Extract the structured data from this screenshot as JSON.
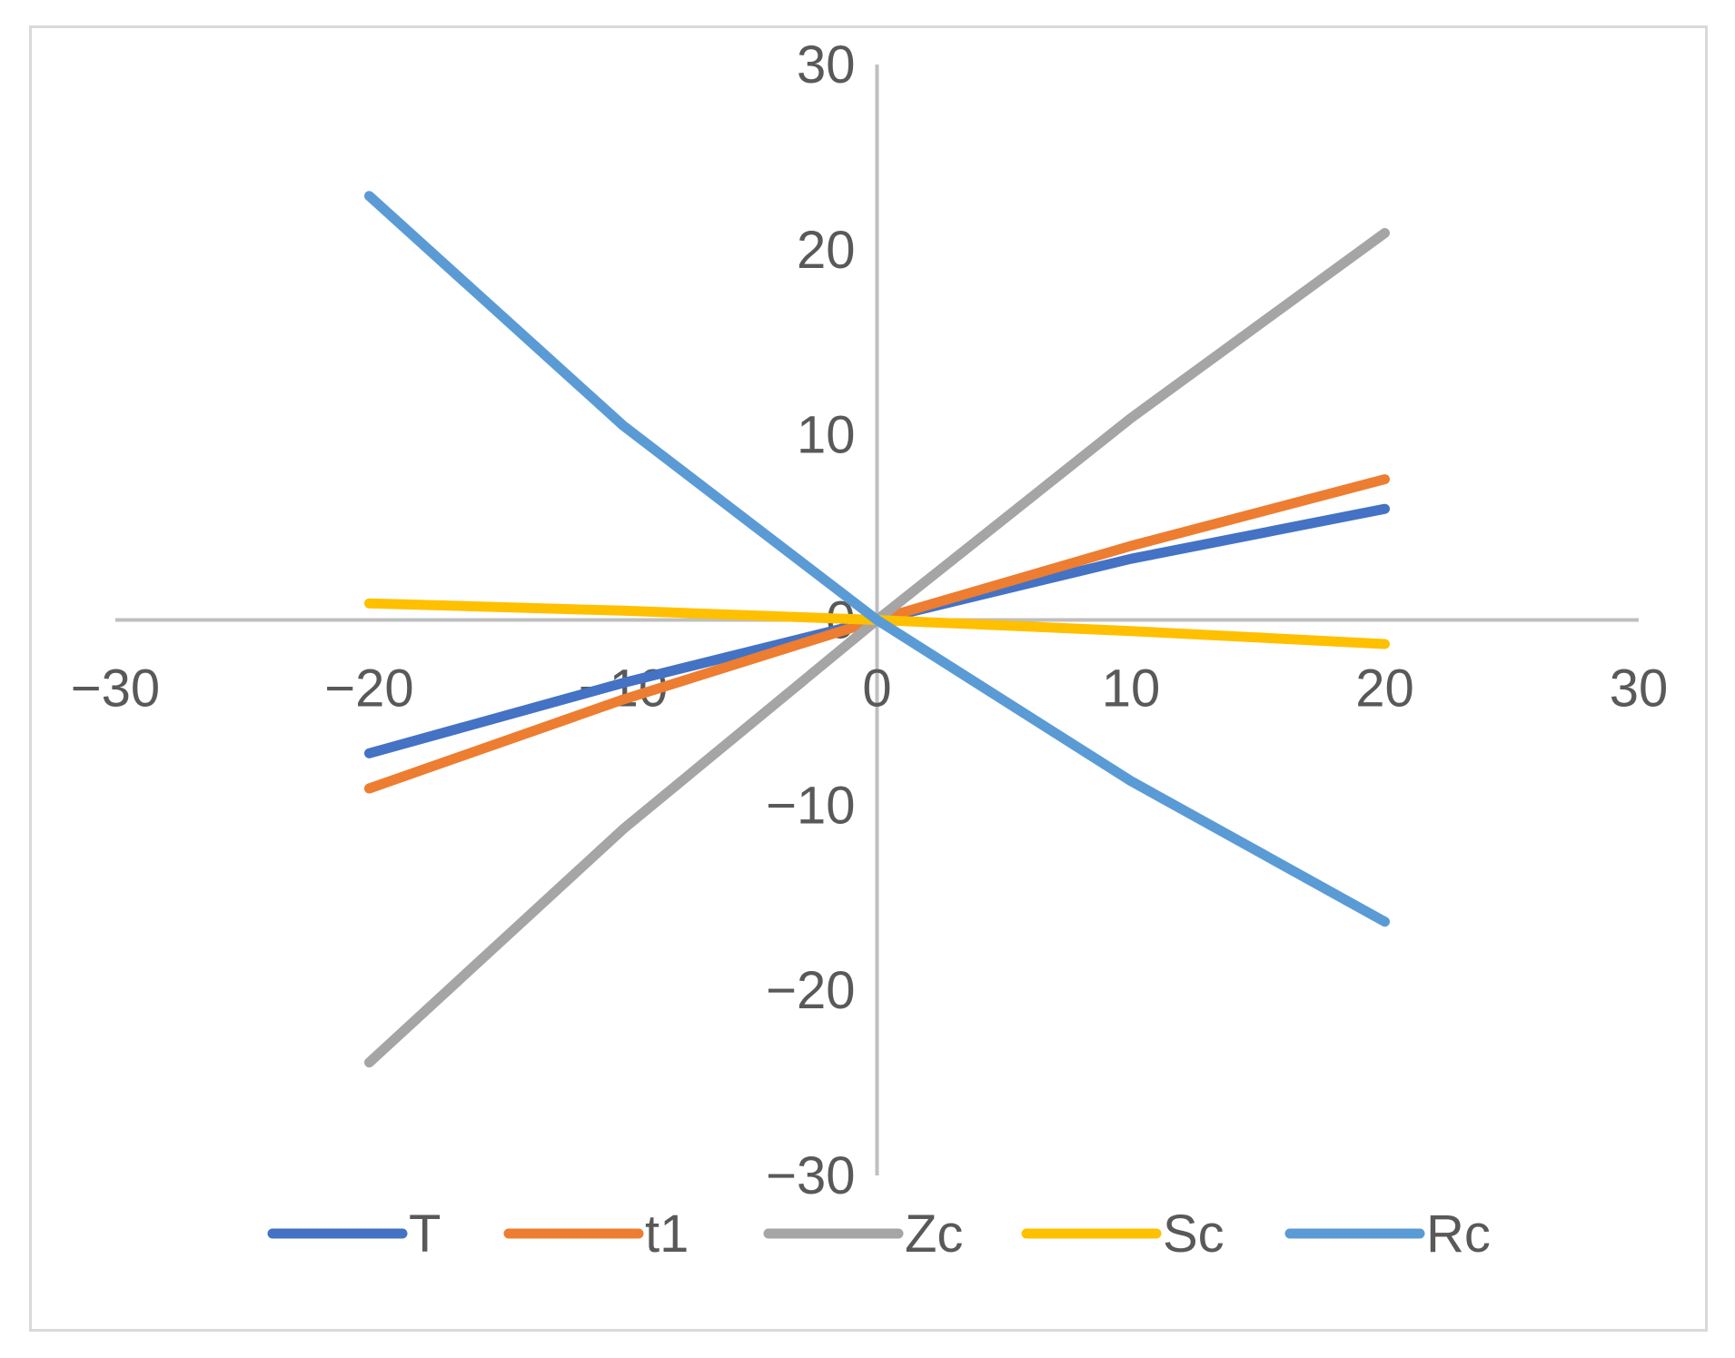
{
  "chart_data": {
    "type": "line",
    "title": "",
    "xlabel": "",
    "ylabel": "",
    "xlim": [
      -30,
      30
    ],
    "ylim": [
      -30,
      30
    ],
    "x_ticks": [
      -30,
      -20,
      -10,
      0,
      10,
      20,
      30
    ],
    "y_ticks": [
      -30,
      -20,
      -10,
      0,
      10,
      20,
      30
    ],
    "x_tick_labels": [
      "−30",
      "−20",
      "−10",
      "0",
      "10",
      "20",
      "30"
    ],
    "y_tick_labels": [
      "−30",
      "−20",
      "−10",
      "0",
      "10",
      "20",
      "30"
    ],
    "grid": false,
    "legend": "bottom",
    "series": [
      {
        "name": "T",
        "color": "#4472C4",
        "x": [
          -20,
          -10,
          0,
          10,
          20
        ],
        "y": [
          -7.2,
          -3.4,
          0,
          3.3,
          6.0
        ]
      },
      {
        "name": "t1",
        "color": "#ED7D31",
        "x": [
          -20,
          -10,
          0,
          10,
          20
        ],
        "y": [
          -9.1,
          -4.3,
          0,
          4.0,
          7.6
        ]
      },
      {
        "name": "Zc",
        "color": "#A5A5A5",
        "x": [
          -20,
          -10,
          0,
          10,
          20
        ],
        "y": [
          -23.9,
          -11.3,
          0,
          10.9,
          20.9
        ]
      },
      {
        "name": "Sc",
        "color": "#FFC000",
        "x": [
          -20,
          -10,
          0,
          10,
          20
        ],
        "y": [
          0.9,
          0.5,
          0,
          -0.6,
          -1.3
        ]
      },
      {
        "name": "Rc",
        "color": "#5B9BD5",
        "x": [
          -20,
          -10,
          0,
          10,
          20
        ],
        "y": [
          22.9,
          10.5,
          0,
          -8.7,
          -16.3
        ]
      }
    ]
  }
}
